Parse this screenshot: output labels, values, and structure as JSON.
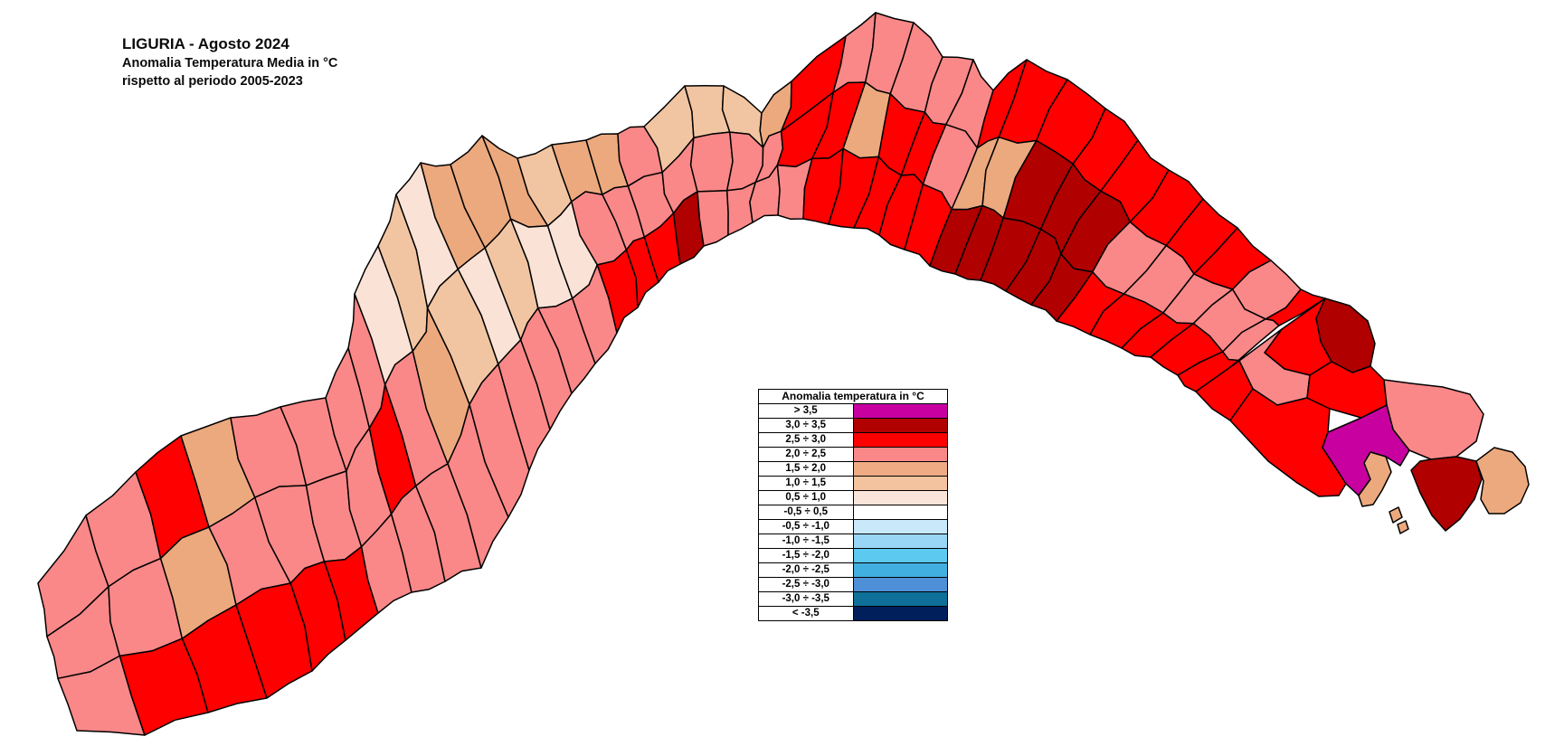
{
  "title": {
    "line1": "LIGURIA - Agosto 2024",
    "line2": "Anomalia Temperatura Media in °C",
    "line3": "rispetto al periodo 2005-2023"
  },
  "legend": {
    "header": "Anomalia temperatura in °C",
    "rows": [
      {
        "label": "> 3,5",
        "color": "#C800A0"
      },
      {
        "label": "3,0 ÷ 3,5",
        "color": "#B00000"
      },
      {
        "label": "2,5 ÷ 3,0",
        "color": "#FE0000"
      },
      {
        "label": "2,0 ÷ 2,5",
        "color": "#FA8888"
      },
      {
        "label": "1,5 ÷ 2,0",
        "color": "#EEAB84"
      },
      {
        "label": "1,0 ÷ 1,5",
        "color": "#F3C29E"
      },
      {
        "label": "0,5 ÷ 1,0",
        "color": "#FBE4D9"
      },
      {
        "label": "-0,5 ÷ 0,5",
        "color": "#FFFFFF"
      },
      {
        "label": "-0,5 ÷ -1,0",
        "color": "#C9E9FB"
      },
      {
        "label": "-1,0 ÷ -1,5",
        "color": "#99D6F5"
      },
      {
        "label": "-1,5 ÷ -2,0",
        "color": "#5BC9F0"
      },
      {
        "label": "-2,0 ÷ -2,5",
        "color": "#41AFDF"
      },
      {
        "label": "-2,5 ÷ -3,0",
        "color": "#4D90D8"
      },
      {
        "label": "-3,0 ÷ -3,5",
        "color": "#0E7099"
      },
      {
        "label": "< -3,5",
        "color": "#001F5B"
      }
    ]
  },
  "map": {
    "border_color": "#000000",
    "class_colors": {
      "M": "#C800A0",
      "D": "#B00000",
      "R": "#FE0000",
      "S": "#FA8888",
      "T": "#ECA97E",
      "L": "#F2C5A2",
      "P": "#FAE3D6"
    },
    "stations": [
      {
        "o": [
          42,
          645
        ],
        "c": [
          85,
          808
        ]
      },
      {
        "o": [
          95,
          570
        ],
        "c": [
          160,
          813
        ]
      },
      {
        "o": [
          150,
          522
        ],
        "c": [
          230,
          788
        ]
      },
      {
        "o": [
          200,
          482
        ],
        "c": [
          295,
          772
        ]
      },
      {
        "o": [
          255,
          462
        ],
        "c": [
          345,
          742
        ]
      },
      {
        "o": [
          310,
          450
        ],
        "c": [
          382,
          708
        ]
      },
      {
        "o": [
          360,
          440
        ],
        "c": [
          418,
          678
        ]
      },
      {
        "o": [
          385,
          385
        ],
        "c": [
          455,
          655
        ]
      },
      {
        "o": [
          392,
          325
        ],
        "c": [
          492,
          643
        ]
      },
      {
        "o": [
          418,
          272
        ],
        "c": [
          532,
          628
        ]
      },
      {
        "o": [
          438,
          215
        ],
        "c": [
          562,
          572
        ]
      },
      {
        "o": [
          465,
          180
        ],
        "c": [
          585,
          520
        ]
      },
      {
        "o": [
          498,
          182
        ],
        "c": [
          608,
          475
        ]
      },
      {
        "o": [
          533,
          150
        ],
        "c": [
          632,
          435
        ]
      },
      {
        "o": [
          572,
          175
        ],
        "c": [
          658,
          402
        ]
      },
      {
        "o": [
          610,
          160
        ],
        "c": [
          682,
          368
        ]
      },
      {
        "o": [
          648,
          155
        ],
        "c": [
          705,
          340
        ]
      },
      {
        "o": [
          683,
          148
        ],
        "c": [
          728,
          312
        ]
      },
      {
        "o": [
          712,
          140
        ],
        "c": [
          752,
          292
        ]
      },
      {
        "o": [
          757,
          95
        ],
        "c": [
          778,
          272
        ]
      },
      {
        "o": [
          800,
          95
        ],
        "c": [
          805,
          260
        ]
      },
      {
        "o": [
          842,
          125
        ],
        "c": [
          832,
          246
        ]
      },
      {
        "o": [
          875,
          90
        ],
        "c": [
          860,
          238
        ]
      },
      {
        "o": [
          935,
          40
        ],
        "c": [
          888,
          242
        ]
      },
      {
        "o": [
          968,
          14
        ],
        "c": [
          916,
          248
        ]
      },
      {
        "o": [
          1010,
          25
        ],
        "c": [
          944,
          252
        ]
      },
      {
        "o": [
          1042,
          63
        ],
        "c": [
          972,
          260
        ]
      },
      {
        "o": [
          1076,
          66
        ],
        "c": [
          1000,
          276
        ]
      },
      {
        "o": [
          1098,
          100
        ],
        "c": [
          1028,
          294
        ]
      },
      {
        "o": [
          1135,
          66
        ],
        "c": [
          1056,
          303
        ]
      },
      {
        "o": [
          1180,
          88
        ],
        "c": [
          1084,
          310
        ]
      },
      {
        "o": [
          1222,
          120
        ],
        "c": [
          1112,
          322
        ]
      },
      {
        "o": [
          1258,
          155
        ],
        "c": [
          1140,
          337
        ]
      },
      {
        "o": [
          1292,
          188
        ],
        "c": [
          1168,
          355
        ]
      },
      {
        "o": [
          1330,
          220
        ],
        "c": [
          1205,
          370
        ]
      },
      {
        "o": [
          1368,
          252
        ],
        "c": [
          1240,
          385
        ]
      },
      {
        "o": [
          1405,
          288
        ],
        "c": [
          1272,
          395
        ]
      },
      {
        "o": [
          1438,
          320
        ],
        "c": [
          1302,
          415
        ]
      },
      {
        "o": [
          1465,
          330
        ],
        "c": [
          1322,
          433
        ]
      }
    ],
    "seg_classes": [
      "SSS",
      "SSR",
      "RTR",
      "TSR",
      "SSR",
      "SSR",
      "SSS",
      "SRS",
      "PSS",
      "LTS",
      "PLS",
      "TPS",
      "TLS",
      "TPS",
      "LPS",
      "TSR",
      "TSR",
      "SSR",
      "LSD",
      "LSS",
      "LSS",
      "TSS",
      "RRS",
      "SRR",
      "STR",
      "SRR",
      "SRR",
      "SSR",
      "RTD",
      "RTD",
      "RDD",
      "RDD",
      "RDD",
      "RSR",
      "RSR",
      "RSR",
      "SSR",
      "RSR"
    ],
    "extra_cells": [
      {
        "cls": "D",
        "pts": [
          [
            1465,
            330
          ],
          [
            1492,
            338
          ],
          [
            1512,
            355
          ],
          [
            1520,
            380
          ],
          [
            1515,
            405
          ],
          [
            1495,
            412
          ],
          [
            1472,
            400
          ],
          [
            1460,
            378
          ],
          [
            1455,
            352
          ]
        ]
      },
      {
        "cls": "R",
        "pts": [
          [
            1465,
            330
          ],
          [
            1455,
            352
          ],
          [
            1460,
            378
          ],
          [
            1472,
            400
          ],
          [
            1448,
            415
          ],
          [
            1420,
            408
          ],
          [
            1398,
            390
          ],
          [
            1417,
            364
          ]
        ]
      },
      {
        "cls": "S",
        "pts": [
          [
            1417,
            364
          ],
          [
            1398,
            390
          ],
          [
            1420,
            408
          ],
          [
            1448,
            415
          ],
          [
            1445,
            440
          ],
          [
            1412,
            448
          ],
          [
            1385,
            430
          ],
          [
            1370,
            399
          ]
        ]
      },
      {
        "cls": "R",
        "pts": [
          [
            1322,
            433
          ],
          [
            1370,
            399
          ],
          [
            1385,
            430
          ],
          [
            1360,
            465
          ],
          [
            1340,
            452
          ]
        ]
      },
      {
        "cls": "R",
        "pts": [
          [
            1360,
            465
          ],
          [
            1385,
            430
          ],
          [
            1412,
            448
          ],
          [
            1445,
            440
          ],
          [
            1470,
            452
          ],
          [
            1468,
            478
          ],
          [
            1462,
            495
          ],
          [
            1472,
            510
          ],
          [
            1488,
            535
          ],
          [
            1480,
            548
          ],
          [
            1458,
            549
          ],
          [
            1434,
            534
          ],
          [
            1402,
            510
          ]
        ]
      },
      {
        "cls": "R",
        "pts": [
          [
            1445,
            440
          ],
          [
            1448,
            415
          ],
          [
            1472,
            400
          ],
          [
            1495,
            412
          ],
          [
            1515,
            405
          ],
          [
            1530,
            420
          ],
          [
            1533,
            448
          ],
          [
            1505,
            462
          ],
          [
            1470,
            452
          ]
        ]
      },
      {
        "cls": "S",
        "pts": [
          [
            1530,
            420
          ],
          [
            1560,
            424
          ],
          [
            1595,
            428
          ],
          [
            1625,
            436
          ],
          [
            1640,
            458
          ],
          [
            1632,
            488
          ],
          [
            1610,
            505
          ],
          [
            1582,
            508
          ],
          [
            1558,
            498
          ],
          [
            1540,
            475
          ],
          [
            1533,
            448
          ]
        ]
      },
      {
        "cls": "M",
        "pts": [
          [
            1468,
            478
          ],
          [
            1505,
            462
          ],
          [
            1533,
            448
          ],
          [
            1540,
            475
          ],
          [
            1558,
            498
          ],
          [
            1548,
            515
          ],
          [
            1532,
            505
          ],
          [
            1515,
            500
          ],
          [
            1508,
            512
          ],
          [
            1515,
            530
          ],
          [
            1502,
            548
          ],
          [
            1488,
            535
          ],
          [
            1472,
            510
          ],
          [
            1462,
            495
          ]
        ]
      },
      {
        "cls": "T",
        "pts": [
          [
            1502,
            548
          ],
          [
            1515,
            530
          ],
          [
            1508,
            512
          ],
          [
            1515,
            500
          ],
          [
            1532,
            505
          ],
          [
            1538,
            522
          ],
          [
            1528,
            542
          ],
          [
            1518,
            558
          ],
          [
            1506,
            560
          ]
        ]
      },
      {
        "cls": "D",
        "pts": [
          [
            1582,
            508
          ],
          [
            1610,
            505
          ],
          [
            1632,
            510
          ],
          [
            1638,
            530
          ],
          [
            1630,
            552
          ],
          [
            1614,
            574
          ],
          [
            1598,
            587
          ],
          [
            1583,
            570
          ],
          [
            1570,
            545
          ],
          [
            1560,
            520
          ],
          [
            1570,
            510
          ]
        ]
      },
      {
        "cls": "T",
        "pts": [
          [
            1632,
            510
          ],
          [
            1652,
            495
          ],
          [
            1672,
            500
          ],
          [
            1686,
            516
          ],
          [
            1690,
            536
          ],
          [
            1681,
            556
          ],
          [
            1663,
            568
          ],
          [
            1646,
            568
          ],
          [
            1637,
            552
          ],
          [
            1640,
            532
          ]
        ]
      },
      {
        "cls": "T",
        "pts": [
          [
            1536,
            566
          ],
          [
            1546,
            561
          ],
          [
            1550,
            572
          ],
          [
            1540,
            578
          ]
        ]
      },
      {
        "cls": "T",
        "pts": [
          [
            1545,
            580
          ],
          [
            1554,
            576
          ],
          [
            1557,
            585
          ],
          [
            1548,
            590
          ]
        ]
      }
    ]
  }
}
